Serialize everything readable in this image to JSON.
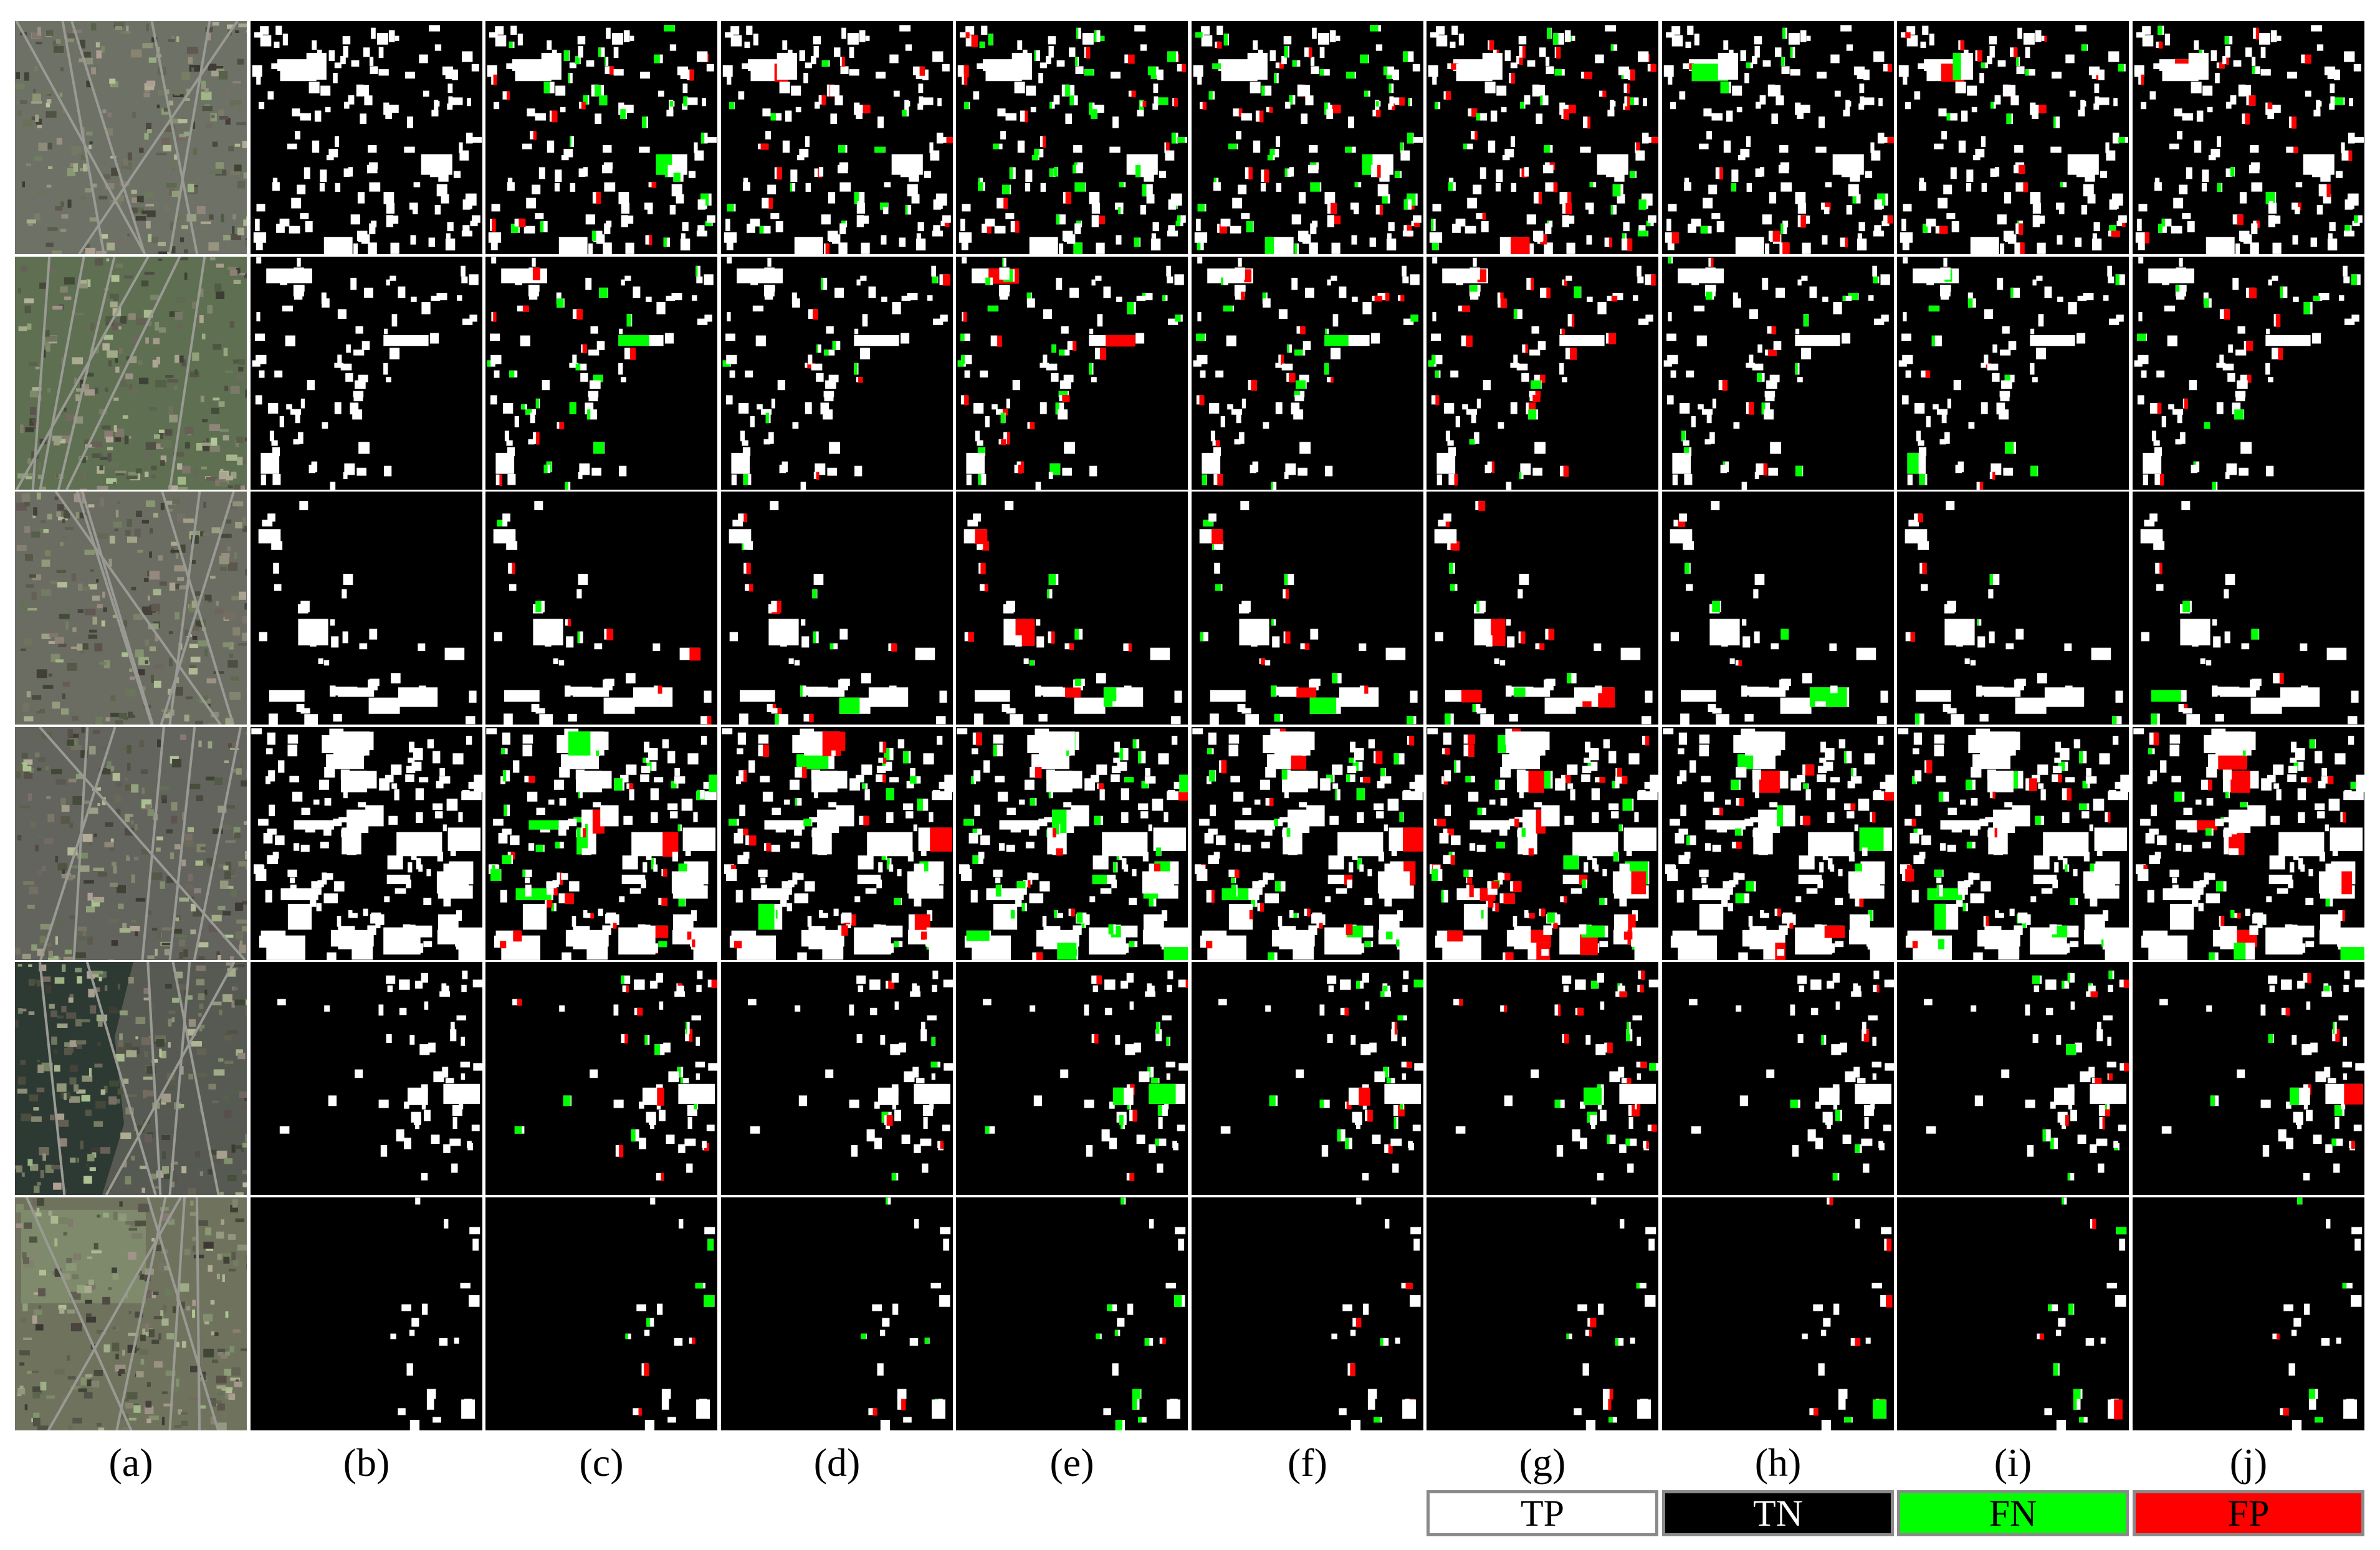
{
  "figure": {
    "rows": 6,
    "columns": [
      {
        "label": "(a)",
        "kind": "aerial"
      },
      {
        "label": "(b)",
        "kind": "ground-truth"
      },
      {
        "label": "(c)",
        "kind": "prediction"
      },
      {
        "label": "(d)",
        "kind": "prediction"
      },
      {
        "label": "(e)",
        "kind": "prediction"
      },
      {
        "label": "(f)",
        "kind": "prediction"
      },
      {
        "label": "(g)",
        "kind": "prediction"
      },
      {
        "label": "(h)",
        "kind": "prediction"
      },
      {
        "label": "(i)",
        "kind": "prediction"
      },
      {
        "label": "(j)",
        "kind": "prediction"
      }
    ]
  },
  "legend": [
    {
      "label": "TP",
      "color": "#ffffff",
      "text_color": "#000000"
    },
    {
      "label": "TN",
      "color": "#000000",
      "text_color": "#ffffff"
    },
    {
      "label": "FN",
      "color": "#00ff00",
      "text_color": "#000000"
    },
    {
      "label": "FP",
      "color": "#ff0000",
      "text_color": "#000000"
    }
  ],
  "colors": {
    "background": "#ffffff",
    "tn": "#000000",
    "tp": "#ffffff",
    "fn": "#00ff00",
    "fp": "#ff0000"
  }
}
